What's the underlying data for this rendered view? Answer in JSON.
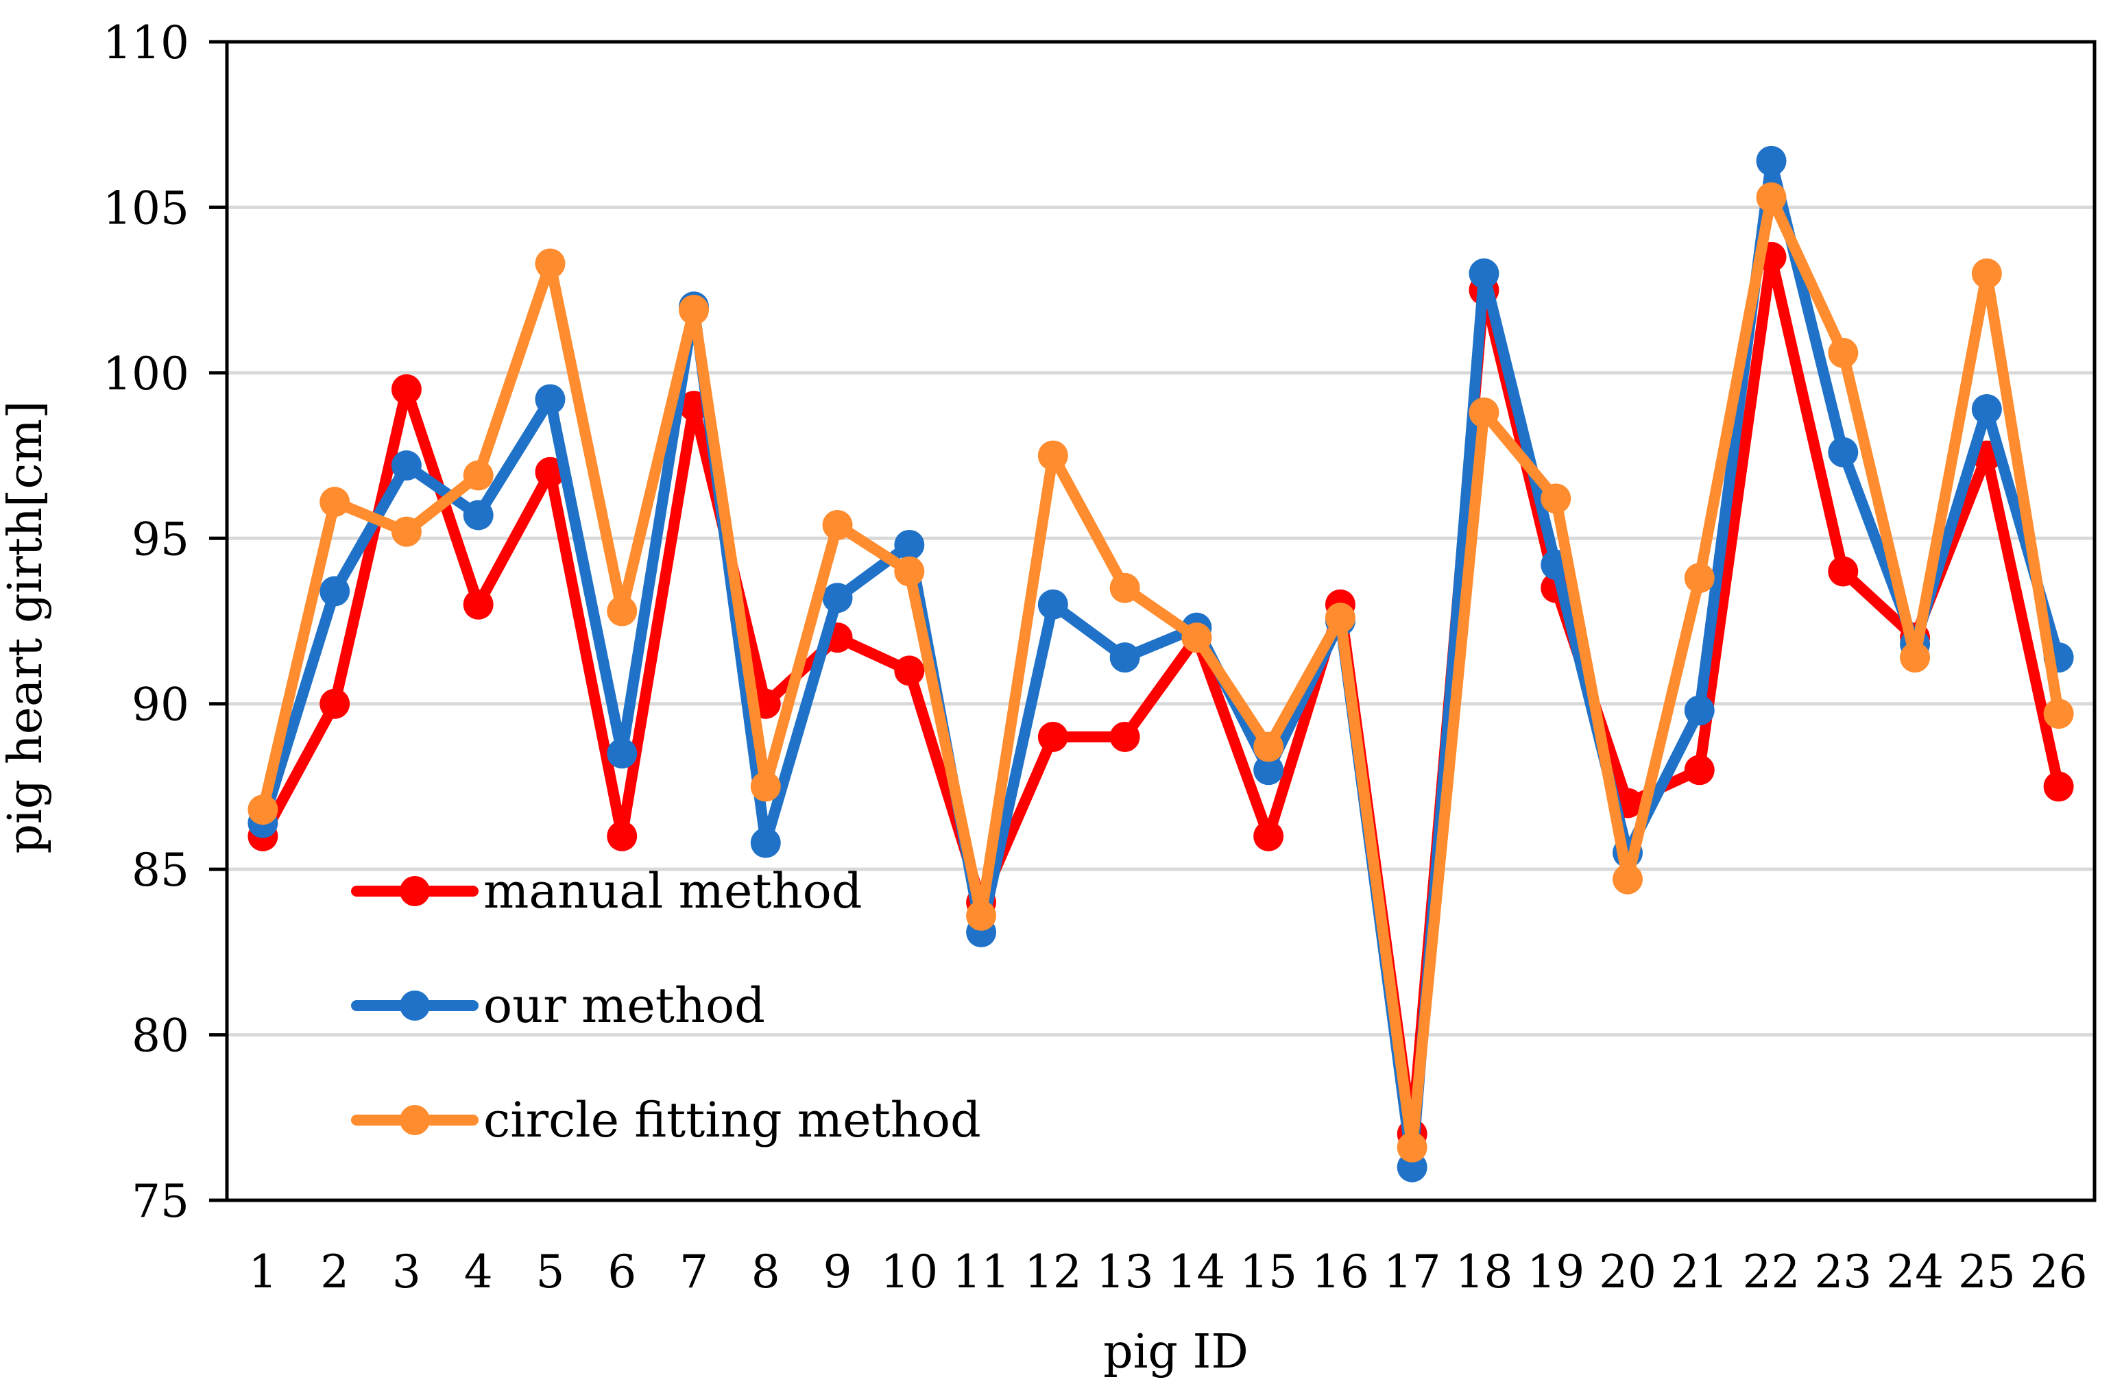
{
  "chart_data": {
    "type": "line",
    "title": "",
    "xlabel": "pig ID",
    "ylabel": "pig heart girth[cm]",
    "ylim": [
      75,
      110
    ],
    "yticks": [
      75,
      80,
      85,
      90,
      95,
      100,
      105,
      110
    ],
    "grid": true,
    "legend_position": "bottom-left",
    "categories": [
      "1",
      "2",
      "3",
      "4",
      "5",
      "6",
      "7",
      "8",
      "9",
      "10",
      "11",
      "12",
      "13",
      "14",
      "15",
      "16",
      "17",
      "18",
      "19",
      "20",
      "21",
      "22",
      "23",
      "24",
      "25",
      "26"
    ],
    "series": [
      {
        "name": "manual method",
        "color": "#ff0000",
        "values": [
          86,
          90,
          99.5,
          93,
          97,
          86,
          99,
          90,
          92,
          91,
          84,
          89,
          89,
          92,
          86,
          93,
          77,
          102.5,
          93.5,
          87,
          88,
          103.5,
          94,
          92,
          97.5,
          87.5
        ]
      },
      {
        "name": "our method",
        "color": "#1f72c8",
        "values": [
          86.4,
          93.4,
          97.2,
          95.7,
          99.2,
          88.5,
          102,
          85.8,
          93.2,
          94.8,
          83.1,
          93,
          91.4,
          92.3,
          88,
          92.5,
          76,
          103,
          94.2,
          85.5,
          89.8,
          106.4,
          97.6,
          91.8,
          98.9,
          91.4
        ]
      },
      {
        "name": "circle fitting method",
        "color": "#ff8c2e",
        "values": [
          86.8,
          96.1,
          95.2,
          96.9,
          103.3,
          92.8,
          101.9,
          87.5,
          95.4,
          94,
          83.6,
          97.5,
          93.5,
          92,
          88.7,
          92.6,
          76.6,
          98.8,
          96.2,
          84.7,
          93.8,
          105.3,
          100.6,
          91.4,
          103,
          89.7
        ]
      }
    ]
  }
}
